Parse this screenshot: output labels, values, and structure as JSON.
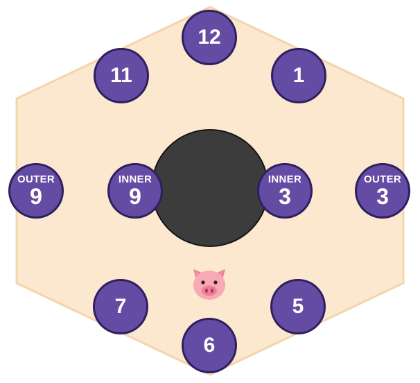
{
  "colors": {
    "board_fill": "#fce7cf",
    "board_edge": "#f3d5ad",
    "marker_fill": "#644ba3",
    "marker_edge": "#2e1f5e",
    "hole": "#3c3c3c"
  },
  "positions": [
    {
      "id": "12",
      "number": "12",
      "tag": ""
    },
    {
      "id": "1",
      "number": "1",
      "tag": ""
    },
    {
      "id": "11",
      "number": "11",
      "tag": ""
    },
    {
      "id": "outer-9",
      "number": "9",
      "tag": "OUTER"
    },
    {
      "id": "inner-9",
      "number": "9",
      "tag": "INNER"
    },
    {
      "id": "inner-3",
      "number": "3",
      "tag": "INNER"
    },
    {
      "id": "outer-3",
      "number": "3",
      "tag": "OUTER"
    },
    {
      "id": "7",
      "number": "7",
      "tag": ""
    },
    {
      "id": "5",
      "number": "5",
      "tag": ""
    },
    {
      "id": "6",
      "number": "6",
      "tag": ""
    }
  ],
  "pieces": [
    {
      "type": "pig",
      "icon": "pig-icon"
    }
  ]
}
